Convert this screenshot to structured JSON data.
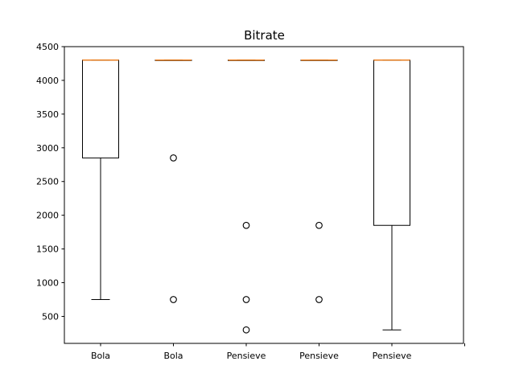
{
  "chart_data": {
    "type": "boxplot",
    "title": "Bitrate",
    "xlabel": "",
    "ylabel": "",
    "ylim": [
      100,
      4500
    ],
    "yticks": [
      500,
      1000,
      1500,
      2000,
      2500,
      3000,
      3500,
      4000,
      4500
    ],
    "grid": false,
    "categories": [
      "Bola",
      "Bola",
      "Pensieve",
      "Pensieve",
      "Pensieve"
    ],
    "boxes": [
      {
        "label": "Bola",
        "whisker_low": 750,
        "q1": 2850,
        "median": 4300,
        "q3": 4300,
        "whisker_high": 4300,
        "outliers": []
      },
      {
        "label": "Bola",
        "whisker_low": 4300,
        "q1": 4300,
        "median": 4300,
        "q3": 4300,
        "whisker_high": 4300,
        "outliers": [
          2850,
          750
        ]
      },
      {
        "label": "Pensieve",
        "whisker_low": 4300,
        "q1": 4300,
        "median": 4300,
        "q3": 4300,
        "whisker_high": 4300,
        "outliers": [
          1850,
          750,
          300
        ]
      },
      {
        "label": "Pensieve",
        "whisker_low": 4300,
        "q1": 4300,
        "median": 4300,
        "q3": 4300,
        "whisker_high": 4300,
        "outliers": [
          1850,
          750
        ]
      },
      {
        "label": "Pensieve",
        "whisker_low": 300,
        "q1": 1850,
        "median": 4300,
        "q3": 4300,
        "whisker_high": 4300,
        "outliers": []
      }
    ],
    "colors": {
      "box": "#000000",
      "median": "#ff7f0e",
      "axes": "#000000",
      "background": "#ffffff"
    }
  }
}
